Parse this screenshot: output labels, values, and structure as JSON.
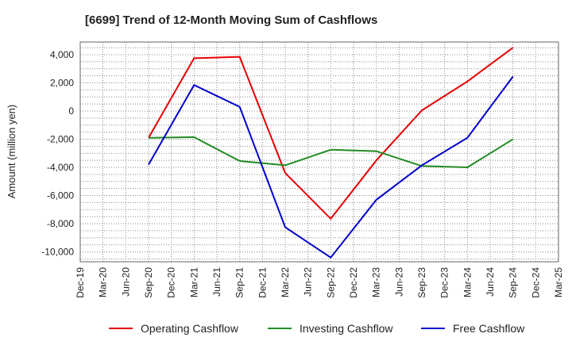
{
  "chart_data": {
    "type": "line",
    "title": "[6699]  Trend of 12-Month Moving Sum of Cashflows",
    "xlabel": "",
    "ylabel": "Amount (million yen)",
    "categories": [
      "Dec-19",
      "Mar-20",
      "Jun-20",
      "Sep-20",
      "Dec-20",
      "Mar-21",
      "Jun-21",
      "Sep-21",
      "Dec-21",
      "Mar-22",
      "Jun-22",
      "Sep-22",
      "Dec-22",
      "Mar-23",
      "Jun-23",
      "Sep-23",
      "Dec-23",
      "Mar-24",
      "Jun-24",
      "Sep-24",
      "Dec-24",
      "Mar-25"
    ],
    "ylim": [
      -10700,
      4900
    ],
    "yticks": [
      4000,
      2000,
      0,
      -2000,
      -4000,
      -6000,
      -8000,
      -10000
    ],
    "ytick_labels": [
      "4,000",
      "2,000",
      "0",
      "-2,000",
      "-4,000",
      "-6,000",
      "-8,000",
      "-10,000"
    ],
    "grid": true,
    "legend_position": "bottom",
    "series": [
      {
        "name": "Operating Cashflow",
        "color": "#e60000",
        "points": [
          {
            "x": "Sep-20",
            "y": -1900
          },
          {
            "x": "Mar-21",
            "y": 3750
          },
          {
            "x": "Sep-21",
            "y": 3850
          },
          {
            "x": "Mar-22",
            "y": -4400
          },
          {
            "x": "Sep-22",
            "y": -7650
          },
          {
            "x": "Mar-23",
            "y": -3500
          },
          {
            "x": "Sep-23",
            "y": 50
          },
          {
            "x": "Mar-24",
            "y": 2100
          },
          {
            "x": "Sep-24",
            "y": 4500
          }
        ]
      },
      {
        "name": "Investing Cashflow",
        "color": "#228b22",
        "points": [
          {
            "x": "Sep-20",
            "y": -1900
          },
          {
            "x": "Mar-21",
            "y": -1850
          },
          {
            "x": "Sep-21",
            "y": -3550
          },
          {
            "x": "Mar-22",
            "y": -3850
          },
          {
            "x": "Sep-22",
            "y": -2750
          },
          {
            "x": "Mar-23",
            "y": -2850
          },
          {
            "x": "Sep-23",
            "y": -3900
          },
          {
            "x": "Mar-24",
            "y": -4000
          },
          {
            "x": "Sep-24",
            "y": -2000
          }
        ]
      },
      {
        "name": "Free Cashflow",
        "color": "#0000cc",
        "points": [
          {
            "x": "Sep-20",
            "y": -3800
          },
          {
            "x": "Mar-21",
            "y": 1850
          },
          {
            "x": "Sep-21",
            "y": 300
          },
          {
            "x": "Mar-22",
            "y": -8250
          },
          {
            "x": "Sep-22",
            "y": -10400
          },
          {
            "x": "Mar-23",
            "y": -6300
          },
          {
            "x": "Sep-23",
            "y": -3850
          },
          {
            "x": "Mar-24",
            "y": -1900
          },
          {
            "x": "Sep-24",
            "y": 2450
          }
        ]
      }
    ]
  }
}
